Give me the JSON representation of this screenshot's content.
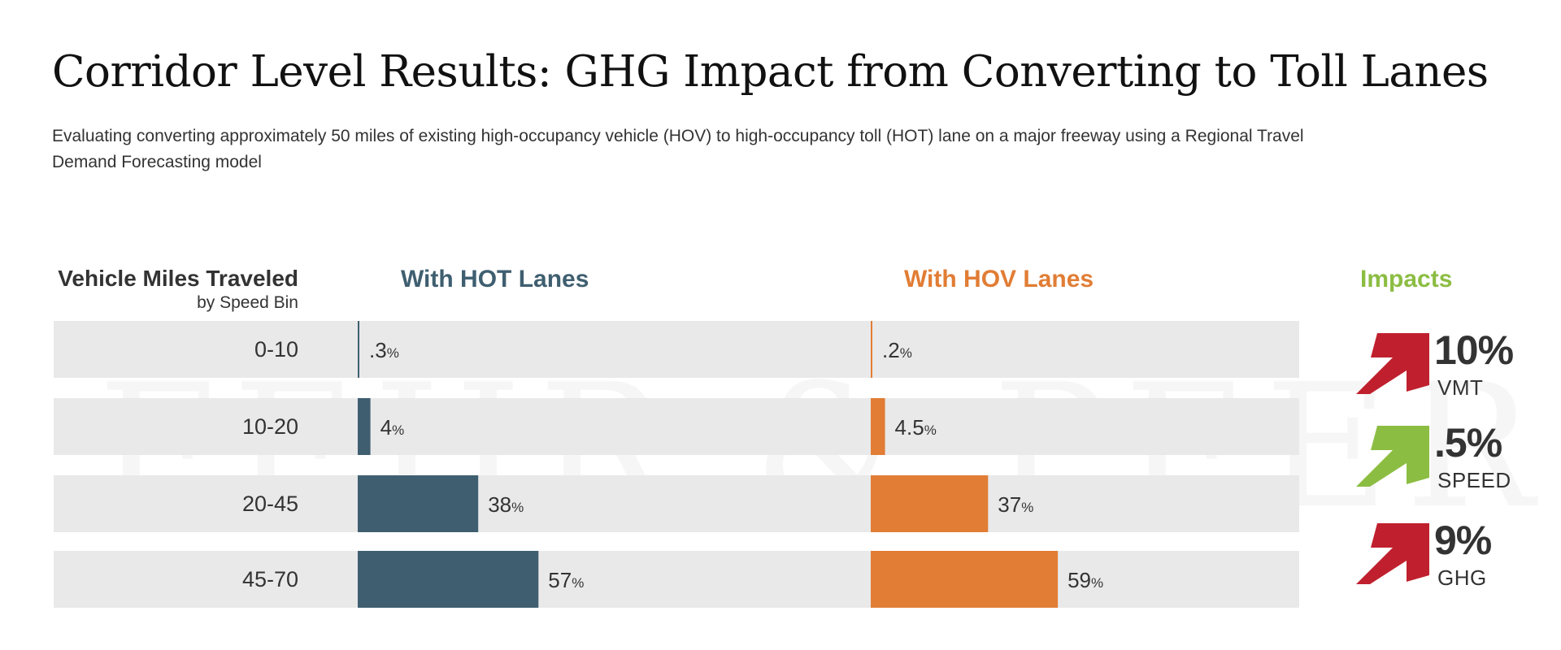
{
  "title": "Corridor Level Results: GHG Impact from Converting to Toll Lanes",
  "subtitle": "Evaluating converting approximately 50 miles of existing high-occupancy vehicle (HOV) to high-occupancy toll (HOT) lane on a major freeway using a Regional Travel Demand Forecasting model",
  "headers": {
    "label_main": "Vehicle Miles Traveled",
    "label_sub": "by Speed Bin",
    "hot": "With HOT Lanes",
    "hov": "With HOV Lanes",
    "impacts": "Impacts"
  },
  "watermark": "FEHR & PEERS",
  "colors": {
    "hot": "#3f5f70",
    "hov": "#e17d35",
    "impacts_green": "#8cbd43",
    "arrow_red": "#c0202e",
    "arrow_green": "#8cbd43",
    "row_background": "#e9e9ea"
  },
  "chart_data": {
    "type": "bar",
    "categories": [
      "0-10",
      "10-20",
      "20-45",
      "45-70"
    ],
    "series": [
      {
        "name": "With HOT Lanes",
        "values": [
          0.3,
          4,
          38,
          57
        ],
        "labels": [
          ".3",
          "4",
          "38",
          "57"
        ],
        "color": "#3f5f70"
      },
      {
        "name": "With HOV Lanes",
        "values": [
          0.2,
          4.5,
          37,
          59
        ],
        "labels": [
          ".2",
          "4.5",
          "37",
          "59"
        ],
        "color": "#e17d35"
      }
    ],
    "unit": "%",
    "title": "Corridor Level Results: GHG Impact from Converting to Toll Lanes",
    "xlabel": "",
    "ylabel": "Vehicle Miles Traveled by Speed Bin"
  },
  "impacts": [
    {
      "value": "10%",
      "label": "VMT",
      "arrow": "red-up-right-arrow-icon",
      "color": "#c0202e"
    },
    {
      "value": ".5%",
      "label": "SPEED",
      "arrow": "green-up-right-arrow-icon",
      "color": "#8cbd43"
    },
    {
      "value": "9%",
      "label": "GHG",
      "arrow": "red-up-right-arrow-icon",
      "color": "#c0202e"
    }
  ]
}
